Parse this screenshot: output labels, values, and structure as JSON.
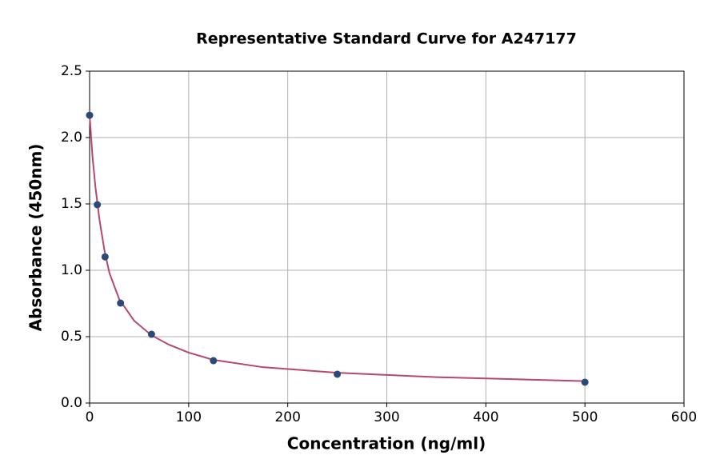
{
  "chart_data": {
    "type": "scatter",
    "title": "Representative Standard Curve for A247177",
    "x_label": "Concentration (ng/ml)",
    "y_label": "Absorbance (450nm)",
    "xlim": [
      0,
      600
    ],
    "ylim": [
      0,
      2.5
    ],
    "xticks": [
      0,
      100,
      200,
      300,
      400,
      500,
      600
    ],
    "yticks": [
      {
        "value": 0,
        "label": "0.0"
      },
      0.5,
      {
        "value": 1,
        "label": "1.0"
      },
      1.5,
      {
        "value": 2,
        "label": "2.0"
      },
      2.5
    ],
    "grid": true,
    "series": [
      {
        "color": "#2c4a78",
        "x": [
          0,
          7.8,
          15.6,
          31.25,
          62.5,
          125,
          250,
          500
        ],
        "values": [
          2.168,
          1.494,
          1.101,
          0.753,
          0.518,
          0.319,
          0.217,
          0.157
        ]
      },
      {
        "type": "line",
        "color": "#b5486c",
        "x": [
          0,
          3,
          6,
          10,
          15,
          20,
          30,
          45,
          62.5,
          80,
          100,
          125,
          175,
          250,
          350,
          500
        ],
        "values": [
          2.17,
          1.85,
          1.62,
          1.38,
          1.15,
          0.98,
          0.78,
          0.62,
          0.51,
          0.44,
          0.38,
          0.325,
          0.27,
          0.228,
          0.195,
          0.165
        ]
      }
    ]
  }
}
